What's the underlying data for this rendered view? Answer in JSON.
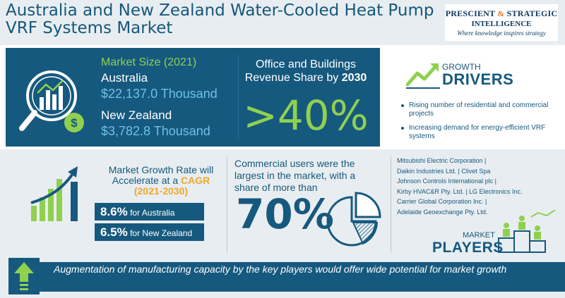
{
  "header": {
    "title": "Australia and New Zealand Water-Cooled Heat Pump VRF Systems Market",
    "logo": {
      "line1a": "PRESCIENT",
      "amp": "&",
      "line1b": "STRATEGIC",
      "line2": "INTELLIGENCE",
      "tagline": "Where knowledge inspires strategy"
    }
  },
  "market_size": {
    "title": "Market Size (2021)",
    "australia_label": "Australia",
    "australia_value": "$22,137.0 Thousand",
    "nz_label": "New Zealand",
    "nz_value": "$3,782.8 Thousand"
  },
  "office_share": {
    "label": "Office and Buildings Revenue Share by",
    "year": "2030",
    "value": ">40%"
  },
  "growth_drivers": {
    "growth": "GROWTH",
    "drivers": "DRIVERS",
    "items": [
      "Rising number of residential and commercial projects",
      "Increasing demand for energy-efficient VRF systems"
    ]
  },
  "cagr": {
    "line1": "Market Growth Rate will",
    "line2a": "Accelerate at a",
    "cagr_word": "CAGR",
    "years": "(2021-2030)",
    "australia_rate": "8.6%",
    "australia_label": "for Australia",
    "nz_rate": "6.5%",
    "nz_label": "for New Zealand"
  },
  "commercial": {
    "text": "Commercial users were the largest in the market, with a share of more than",
    "value": "70%"
  },
  "players": {
    "lines": [
      "Mitsubishi Electric Corporation |",
      "Daikin Industries Ltd. | Clivet Spa",
      "Johnson Controls International plc |",
      "Kirby HVAC&R Pty. Ltd. | LG Electronics Inc.",
      "Carrier Global Corporation Inc. |",
      "Adelaide Geoexchange Pty. Ltd."
    ],
    "market": "MARKET",
    "players_word": "PLAYERS"
  },
  "footer": {
    "text": "Augmentation of manufacturing capacity by the key players would offer wide potential for market growth"
  },
  "colors": {
    "navy": "#16597e",
    "green": "#8fd14f",
    "light_blue": "#6ec1e4",
    "orange": "#f0a82b",
    "background": "#e8edf1"
  },
  "icons": [
    "magnifier-chart-dollar-icon",
    "trend-arrow-icon",
    "growth-bars-icon",
    "pie-chart-icon",
    "podium-players-icon",
    "up-arrow-icon"
  ]
}
